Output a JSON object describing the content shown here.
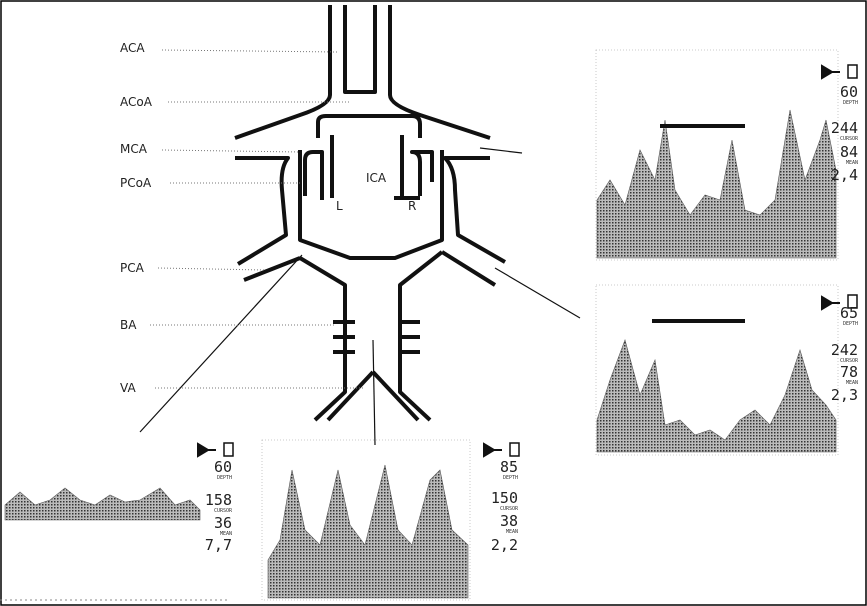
{
  "labels": [
    "ACA",
    "ACoA",
    "MCA",
    "PCoA",
    "PCA",
    "BA",
    "VA"
  ],
  "center_labels": [
    "ICA",
    "L",
    "R"
  ],
  "panels": [
    {
      "depth": "60",
      "depth_label": "DEPTH",
      "cursor": "244",
      "cursor_label": "CURSOR",
      "mean": "84",
      "mean_label": "MEAN",
      "pi": "2,4"
    },
    {
      "depth": "65",
      "depth_label": "DEPTH",
      "cursor": "242",
      "cursor_label": "CURSOR",
      "mean": "78",
      "mean_label": "MEAN",
      "pi": "2,3"
    },
    {
      "depth": "60",
      "depth_label": "DEPTH",
      "cursor": "158",
      "cursor_label": "CURSOR",
      "mean": "36",
      "mean_label": "MEAN",
      "pi": "7,7"
    },
    {
      "depth": "85",
      "depth_label": "DEPTH",
      "cursor": "150",
      "cursor_label": "CURSOR",
      "mean": "38",
      "mean_label": "MEAN",
      "pi": "2,2"
    }
  ]
}
